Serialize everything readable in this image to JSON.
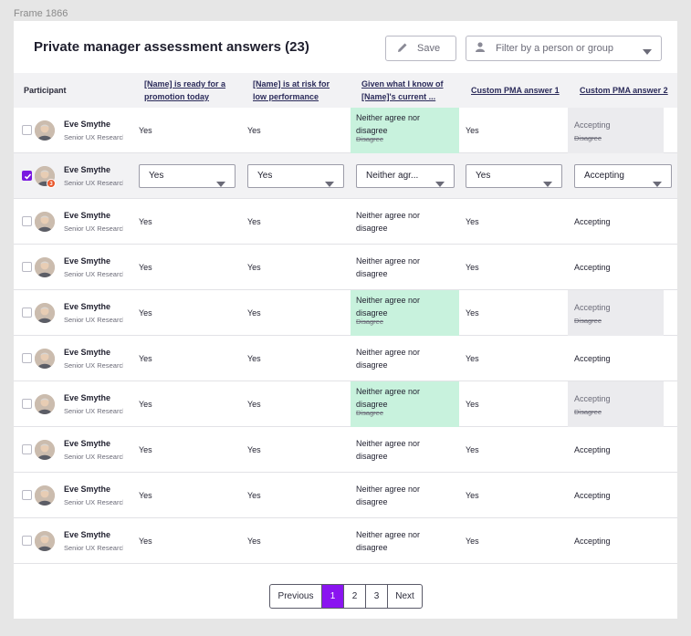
{
  "frame_label": "Frame 1866",
  "title": "Private manager assessment answers (23)",
  "save_label": "Save",
  "filter_placeholder": "Filter by a person or group",
  "columns": {
    "participant": "Participant",
    "c1": [
      "[Name] is ready for a",
      "promotion today"
    ],
    "c2": [
      "[Name] is at risk for",
      "low performance"
    ],
    "c3": [
      "Given what I know of",
      "[Name]'s current ..."
    ],
    "c4": "Custom PMA answer 1",
    "c5": "Custom PMA answer 2"
  },
  "rows": [
    {
      "name": "Eve Smythe",
      "role": "Senior UX Researcher",
      "c1": "Yes",
      "c2": "Yes",
      "c3a": "Neither agree nor",
      "c3b": "disagree",
      "c3_prev": "Disagree",
      "c4": "Yes",
      "c5": "Accepting",
      "c5_prev": "Disagree",
      "changed": true
    },
    {
      "name": "Eve Smythe",
      "role": "Senior UX Researcher",
      "badge": "3",
      "selected": true,
      "dd": [
        "Yes",
        "Yes",
        "Neither agr...",
        "Yes",
        "Accepting"
      ]
    },
    {
      "name": "Eve Smythe",
      "role": "Senior UX Researcher",
      "c1": "Yes",
      "c2": "Yes",
      "c3a": "Neither agree nor",
      "c3b": "disagree",
      "c4": "Yes",
      "c5": "Accepting"
    },
    {
      "name": "Eve Smythe",
      "role": "Senior UX Researcher",
      "c1": "Yes",
      "c2": "Yes",
      "c3a": "Neither agree nor",
      "c3b": "disagree",
      "c4": "Yes",
      "c5": "Accepting"
    },
    {
      "name": "Eve Smythe",
      "role": "Senior UX Researcher",
      "c1": "Yes",
      "c2": "Yes",
      "c3a": "Neither agree nor",
      "c3b": "disagree",
      "c3_prev": "Disagree",
      "c4": "Yes",
      "c5": "Accepting",
      "c5_prev": "Disagree",
      "changed": true
    },
    {
      "name": "Eve Smythe",
      "role": "Senior UX Researcher",
      "c1": "Yes",
      "c2": "Yes",
      "c3a": "Neither agree nor",
      "c3b": "disagree",
      "c4": "Yes",
      "c5": "Accepting"
    },
    {
      "name": "Eve Smythe",
      "role": "Senior UX Researcher",
      "c1": "Yes",
      "c2": "Yes",
      "c3a": "Neither agree nor",
      "c3b": "disagree",
      "c3_prev": "Disagree",
      "c4": "Yes",
      "c5": "Accepting",
      "c5_prev": "Disagree",
      "changed": true
    },
    {
      "name": "Eve Smythe",
      "role": "Senior UX Researcher",
      "c1": "Yes",
      "c2": "Yes",
      "c3a": "Neither agree nor",
      "c3b": "disagree",
      "c4": "Yes",
      "c5": "Accepting"
    },
    {
      "name": "Eve Smythe",
      "role": "Senior UX Researcher",
      "c1": "Yes",
      "c2": "Yes",
      "c3a": "Neither agree nor",
      "c3b": "disagree",
      "c4": "Yes",
      "c5": "Accepting"
    },
    {
      "name": "Eve Smythe",
      "role": "Senior UX Researcher",
      "c1": "Yes",
      "c2": "Yes",
      "c3a": "Neither agree nor",
      "c3b": "disagree",
      "c4": "Yes",
      "c5": "Accepting"
    }
  ],
  "pagination": {
    "previous": "Previous",
    "pages": [
      "1",
      "2",
      "3"
    ],
    "next": "Next",
    "current": "1"
  },
  "colors": {
    "accent": "#8a14f0",
    "changed_bg": "#c8f2dd",
    "badge": "#e8562a"
  }
}
